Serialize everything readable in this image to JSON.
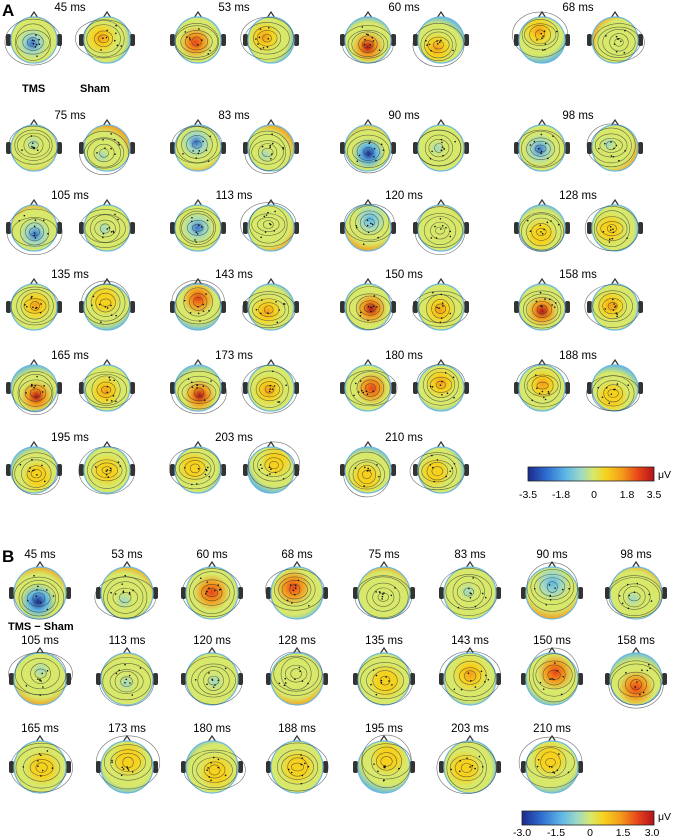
{
  "panel_a": {
    "letter": "A",
    "times": [
      "45 ms",
      "53 ms",
      "60 ms",
      "68 ms",
      "75 ms",
      "83 ms",
      "90 ms",
      "98 ms",
      "105 ms",
      "113 ms",
      "120 ms",
      "128 ms",
      "135 ms",
      "143 ms",
      "150 ms",
      "158 ms",
      "165 ms",
      "173 ms",
      "180 ms",
      "188 ms",
      "195 ms",
      "203 ms",
      "210 ms"
    ],
    "tms_label": "TMS",
    "sham_label": "Sham",
    "colorbar": {
      "unit": "μV",
      "ticks": [
        "-3.5",
        "-1.8",
        "0",
        "1.8",
        "3.5"
      ],
      "min": -3.5,
      "max": 3.5
    }
  },
  "panel_b": {
    "letter": "B",
    "times": [
      "45 ms",
      "53 ms",
      "60 ms",
      "68 ms",
      "75 ms",
      "83 ms",
      "90 ms",
      "98 ms",
      "105 ms",
      "113 ms",
      "120 ms",
      "128 ms",
      "135 ms",
      "143 ms",
      "150 ms",
      "158 ms",
      "165 ms",
      "173 ms",
      "180 ms",
      "188 ms",
      "195 ms",
      "203 ms",
      "210 ms"
    ],
    "diff_label": "TMS − Sham",
    "colorbar": {
      "unit": "μV",
      "ticks": [
        "-3.0",
        "-1.5",
        "0",
        "1.5",
        "3.0"
      ],
      "min": -3.0,
      "max": 3.0
    }
  },
  "colormap": [
    "#1a2a8c",
    "#2f6fd0",
    "#5fb7e6",
    "#9ed9c6",
    "#d8e86a",
    "#f6d21e",
    "#f49a1b",
    "#e8421a",
    "#b2121a"
  ]
}
